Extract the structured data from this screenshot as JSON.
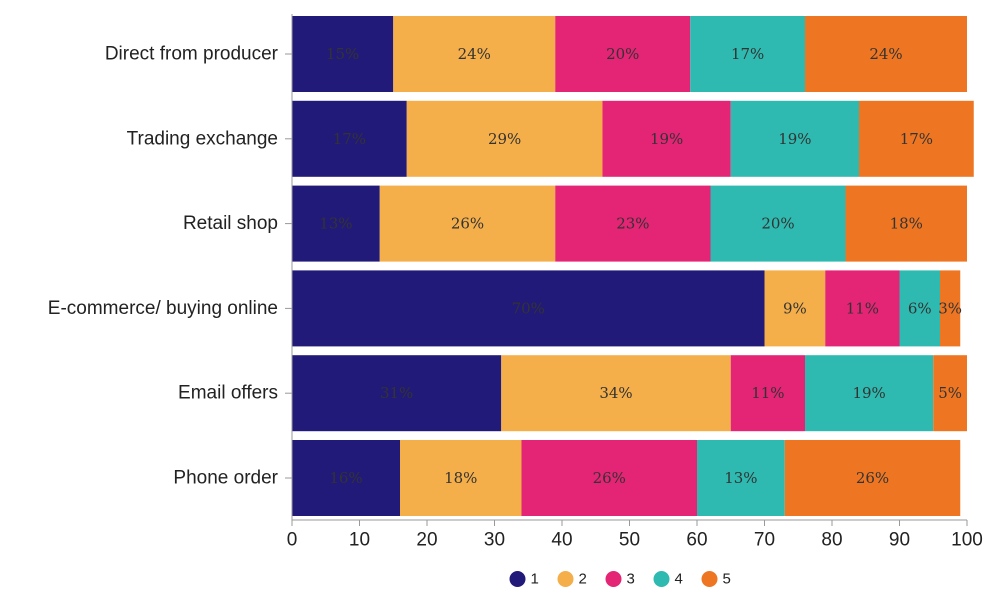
{
  "chart_data": {
    "type": "bar",
    "orientation": "horizontal",
    "stacked": true,
    "title": "",
    "xlabel": "",
    "ylabel": "",
    "xlim": [
      0,
      100
    ],
    "x_ticks": [
      0,
      10,
      20,
      30,
      40,
      50,
      60,
      70,
      80,
      90,
      100
    ],
    "categories": [
      "Direct from producer",
      "Trading exchange",
      "Retail shop",
      "E-commerce/ buying online",
      "Email offers",
      "Phone order"
    ],
    "series": [
      {
        "name": "1",
        "color": "#221a78",
        "values": [
          15,
          17,
          13,
          70,
          31,
          16
        ],
        "labels": [
          "15%",
          "17%",
          "13%",
          "70%",
          "31%",
          "16%"
        ]
      },
      {
        "name": "2",
        "color": "#f4ae4a",
        "values": [
          24,
          29,
          26,
          9,
          34,
          18
        ],
        "labels": [
          "24%",
          "29%",
          "26%",
          "9%",
          "34%",
          "18%"
        ]
      },
      {
        "name": "3",
        "color": "#e42475",
        "values": [
          20,
          19,
          23,
          11,
          11,
          26
        ],
        "labels": [
          "20%",
          "19%",
          "23%",
          "11%",
          "11%",
          "26%"
        ]
      },
      {
        "name": "4",
        "color": "#2ebab0",
        "values": [
          17,
          19,
          20,
          6,
          19,
          13
        ],
        "labels": [
          "17%",
          "19%",
          "20%",
          "6%",
          "19%",
          "13%"
        ]
      },
      {
        "name": "5",
        "color": "#ee7623",
        "values": [
          24,
          17,
          18,
          3,
          5,
          26
        ],
        "labels": [
          "24%",
          "17%",
          "18%",
          "3%",
          "5%",
          "26%"
        ]
      }
    ],
    "legend": {
      "position": "bottom-center"
    },
    "grid": false
  }
}
